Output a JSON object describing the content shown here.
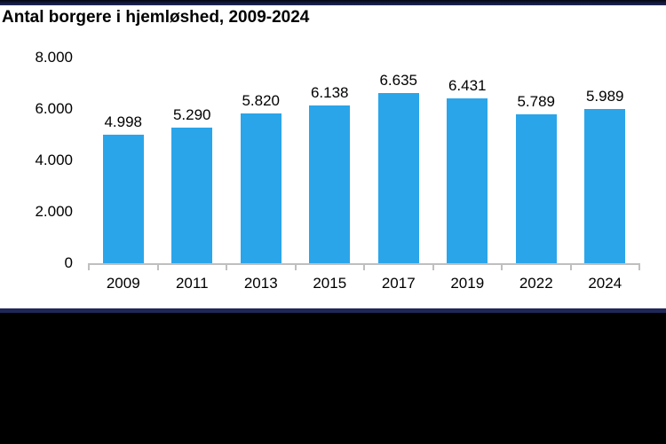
{
  "chart_data": {
    "type": "bar",
    "title": "Antal borgere i hjemløshed, 2009-2024",
    "categories": [
      "2009",
      "2011",
      "2013",
      "2015",
      "2017",
      "2019",
      "2022",
      "2024"
    ],
    "values": [
      4998,
      5290,
      5820,
      6138,
      6635,
      6431,
      5789,
      5989
    ],
    "value_labels": [
      "4.998",
      "5.290",
      "5.820",
      "6.138",
      "6.635",
      "6.431",
      "5.789",
      "5.989"
    ],
    "xlabel": "",
    "ylabel": "",
    "ylim": [
      0,
      8000
    ],
    "y_ticks": {
      "values": [
        8000,
        6000,
        4000,
        2000,
        0
      ],
      "labels": [
        "8.000",
        "6.000",
        "4.000",
        "2.000",
        "0"
      ]
    },
    "grid": false,
    "legend": false,
    "colors": {
      "bar": "#2aa5ea",
      "axis": "#bfbfbf",
      "text": "#000000",
      "stripe_navy": "#1f2757",
      "footer": "#000000"
    }
  }
}
